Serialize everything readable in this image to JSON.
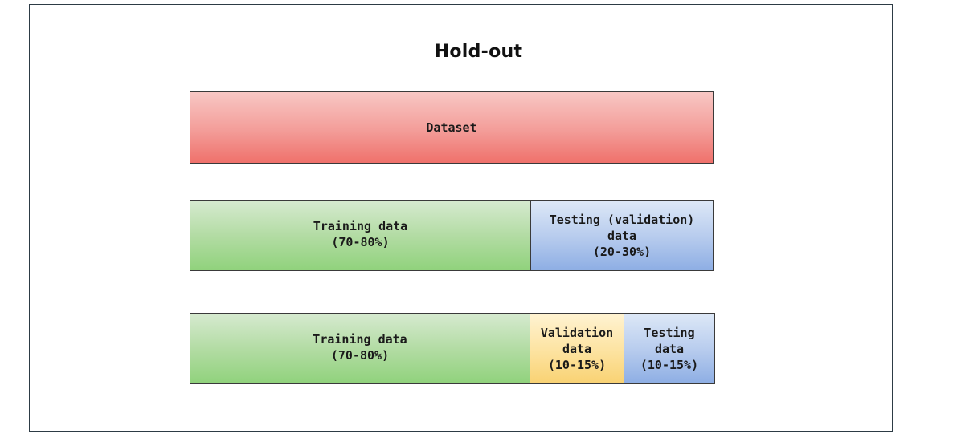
{
  "diagram": {
    "title": "Hold-out",
    "dataset": {
      "label": "Dataset"
    },
    "split_two": {
      "training_label": "Training data\n(70-80%)",
      "testing_label": "Testing (validation)\ndata\n(20-30%)"
    },
    "split_three": {
      "training_label": "Training data\n(70-80%)",
      "validation_label": "Validation\ndata\n(10-15%)",
      "testing_label": "Testing\ndata\n(10-15%)"
    },
    "colors": {
      "dataset": "#f39c98",
      "training": "#b3dca4",
      "testing": "#b9cdee",
      "validation": "#fde4a4"
    }
  }
}
